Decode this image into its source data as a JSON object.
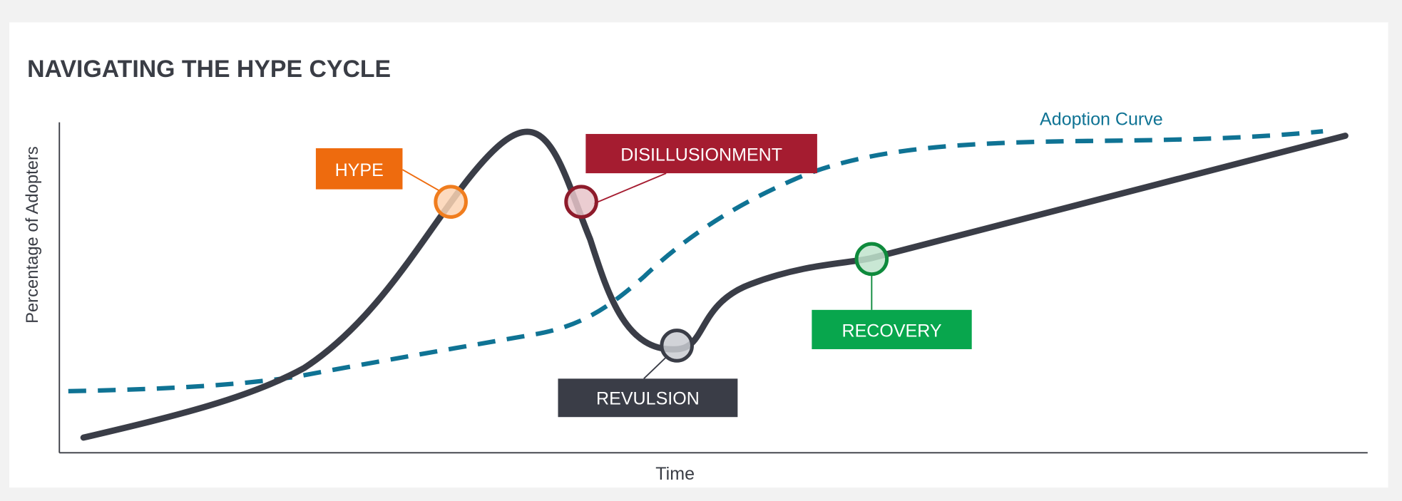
{
  "title": "NAVIGATING THE HYPE CYCLE",
  "axes": {
    "y_label": "Percentage of Adopters",
    "x_label": "Time"
  },
  "adoption_curve_label": "Adoption Curve",
  "stages": {
    "hype": {
      "label": "HYPE",
      "color": "#ee6b0e",
      "marker_fill": "#fbd3b4",
      "marker_stroke": "#f07d1e"
    },
    "disillusionment": {
      "label": "DISILLUSIONMENT",
      "color": "#a51c30",
      "marker_fill": "#e8c4c9",
      "marker_stroke": "#8e1b2b"
    },
    "revulsion": {
      "label": "REVULSION",
      "color": "#3a3d47",
      "marker_fill": "#c9cbd1",
      "marker_stroke": "#3a3d47"
    },
    "recovery": {
      "label": "RECOVERY",
      "color": "#08a64d",
      "marker_fill": "#bfe3cc",
      "marker_stroke": "#0e8a3c"
    }
  },
  "colors": {
    "hype_curve": "#3a3d47",
    "adoption_curve": "#0f7394",
    "text": "#3a3d45"
  }
}
